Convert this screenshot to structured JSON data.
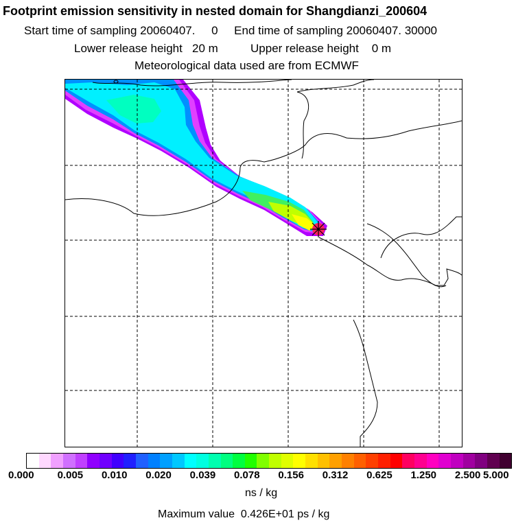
{
  "header": {
    "title": "Footprint emission sensitivity in nested domain for Shangdianzi_200604",
    "sampling_line": "Start time of sampling 20060407.     0     End time of sampling 20060407. 30000",
    "release_line": "Lower release height   20 m          Upper release height    0 m",
    "met_line": "Meteorological data used are from ECMWF"
  },
  "map": {
    "grid_style": "dashed",
    "receptor_marker": "receptor-star",
    "plume_colors": {
      "outer": "#b000ff",
      "purple": "#e040ff",
      "blue": "#0090ff",
      "cyan": "#00f0ff",
      "teal": "#00ffc0",
      "green": "#40f060",
      "lime": "#c0ff00",
      "yellow": "#ffff00",
      "peak": "#ff2060"
    }
  },
  "colorbar": {
    "colors": [
      "#ffffff",
      "#ffd8ff",
      "#f0a0ff",
      "#d070ff",
      "#c040ff",
      "#9000ff",
      "#7000ff",
      "#4000ff",
      "#2020ff",
      "#2060ff",
      "#0080ff",
      "#00a0ff",
      "#00c8ff",
      "#00ffff",
      "#00ffe0",
      "#00ffb0",
      "#00ff80",
      "#00ff40",
      "#20ff00",
      "#80ff00",
      "#c0ff00",
      "#e0ff00",
      "#ffff00",
      "#ffe000",
      "#ffc000",
      "#ffa000",
      "#ff8000",
      "#ff6000",
      "#ff4000",
      "#ff2000",
      "#ff0000",
      "#ff0060",
      "#ff0090",
      "#ff00c0",
      "#e000d0",
      "#c000c0",
      "#a000a0",
      "#800080",
      "#600050",
      "#400030"
    ],
    "tick_labels": [
      "0.000",
      "0.005",
      "0.010",
      "0.020",
      "0.039",
      "0.078",
      "0.156",
      "0.312",
      "0.625",
      "1.250",
      "2.500",
      "5.000"
    ],
    "unit": "ns / kg"
  },
  "footer": {
    "max_value": "Maximum value  0.426E+01 ps / kg"
  }
}
